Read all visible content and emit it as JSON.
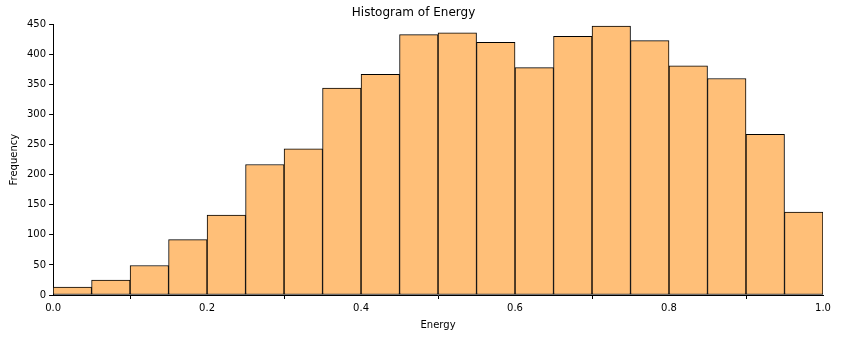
{
  "chart_data": {
    "type": "histogram",
    "title": "Histogram of Energy",
    "x_label": "Energy",
    "y_label": "Frequency",
    "bins": [
      0,
      0.05,
      0.1,
      0.15,
      0.2,
      0.25,
      0.3,
      0.35,
      0.4,
      0.45,
      0.5,
      0.55,
      0.6,
      0.65,
      0.7,
      0.75,
      0.8,
      0.85,
      0.9,
      0.95,
      1
    ],
    "values": [
      13,
      25,
      49,
      92,
      133,
      217,
      243,
      344,
      367,
      433,
      436,
      420,
      378,
      430,
      447,
      423,
      381,
      360,
      267,
      138
    ],
    "color": "#ffbf78",
    "xlim": [
      0,
      1
    ],
    "xticks": [
      {
        "value": 0,
        "label": "0.0"
      },
      0.2,
      0.4,
      0.6,
      0.8,
      {
        "value": 1,
        "label": "1.0"
      }
    ],
    "ylim": [
      0,
      450
    ],
    "yticks": [
      0,
      50,
      100,
      150,
      200,
      250,
      300,
      350,
      400,
      450
    ],
    "grid": false
  }
}
